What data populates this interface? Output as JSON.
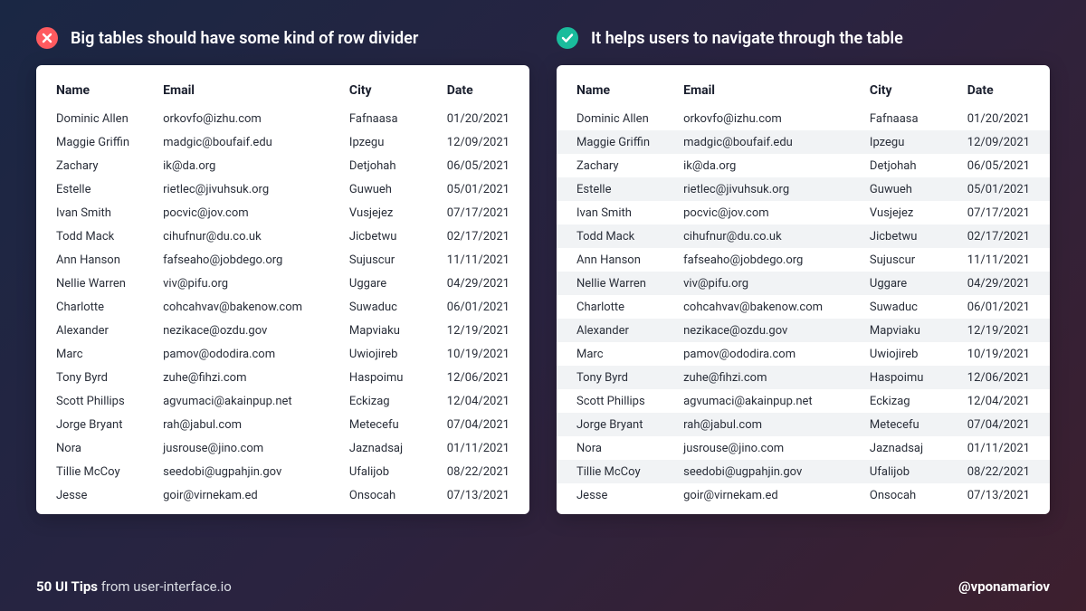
{
  "colors": {
    "bad_icon_bg": "#ff5a5f",
    "good_icon_bg": "#1abc9c",
    "icon_fg": "#ffffff",
    "card_bg": "#ffffff",
    "stripe_bg": "#f1f3f5",
    "text": "#2a2f3a",
    "title": "#ffffff"
  },
  "left_panel": {
    "status": "bad",
    "title": "Big tables should have some kind of row divider"
  },
  "right_panel": {
    "status": "good",
    "title": "It helps users to navigate through the table"
  },
  "table": {
    "columns": [
      "Name",
      "Email",
      "City",
      "Date"
    ],
    "rows": [
      [
        "Dominic Allen",
        "orkovfo@izhu.com",
        "Fafnaasa",
        "01/20/2021"
      ],
      [
        "Maggie Griffin",
        "madgic@boufaif.edu",
        "Ipzegu",
        "12/09/2021"
      ],
      [
        "Zachary",
        "ik@da.org",
        "Detjohah",
        "06/05/2021"
      ],
      [
        "Estelle",
        "rietlec@jivuhsuk.org",
        "Guwueh",
        "05/01/2021"
      ],
      [
        "Ivan Smith",
        "pocvic@jov.com",
        "Vusjejez",
        "07/17/2021"
      ],
      [
        "Todd Mack",
        "cihufnur@du.co.uk",
        "Jicbetwu",
        "02/17/2021"
      ],
      [
        "Ann Hanson",
        "fafseaho@jobdego.org",
        "Sujuscur",
        "11/11/2021"
      ],
      [
        "Nellie Warren",
        "viv@pifu.org",
        "Uggare",
        "04/29/2021"
      ],
      [
        "Charlotte",
        "cohcahvav@bakenow.com",
        "Suwaduc",
        "06/01/2021"
      ],
      [
        "Alexander",
        "nezikace@ozdu.gov",
        "Mapviaku",
        "12/19/2021"
      ],
      [
        "Marc",
        "pamov@ododira.com",
        "Uwiojireb",
        "10/19/2021"
      ],
      [
        "Tony Byrd",
        "zuhe@fihzi.com",
        "Haspoimu",
        "12/06/2021"
      ],
      [
        "Scott Phillips",
        "agvumaci@akainpup.net",
        "Eckizag",
        "12/04/2021"
      ],
      [
        "Jorge Bryant",
        "rah@jabul.com",
        "Metecefu",
        "07/04/2021"
      ],
      [
        "Nora",
        "jusrouse@jino.com",
        "Jaznadsaj",
        "01/11/2021"
      ],
      [
        "Tillie McCoy",
        "seedobi@ugpahjin.gov",
        "Ufalijob",
        "08/22/2021"
      ],
      [
        "Jesse",
        "goir@virnekam.ed",
        "Onsocah",
        "07/13/2021"
      ]
    ]
  },
  "footer": {
    "bold": "50 UI Tips",
    "rest": " from user-interface.io",
    "handle": "@vponamariov"
  }
}
